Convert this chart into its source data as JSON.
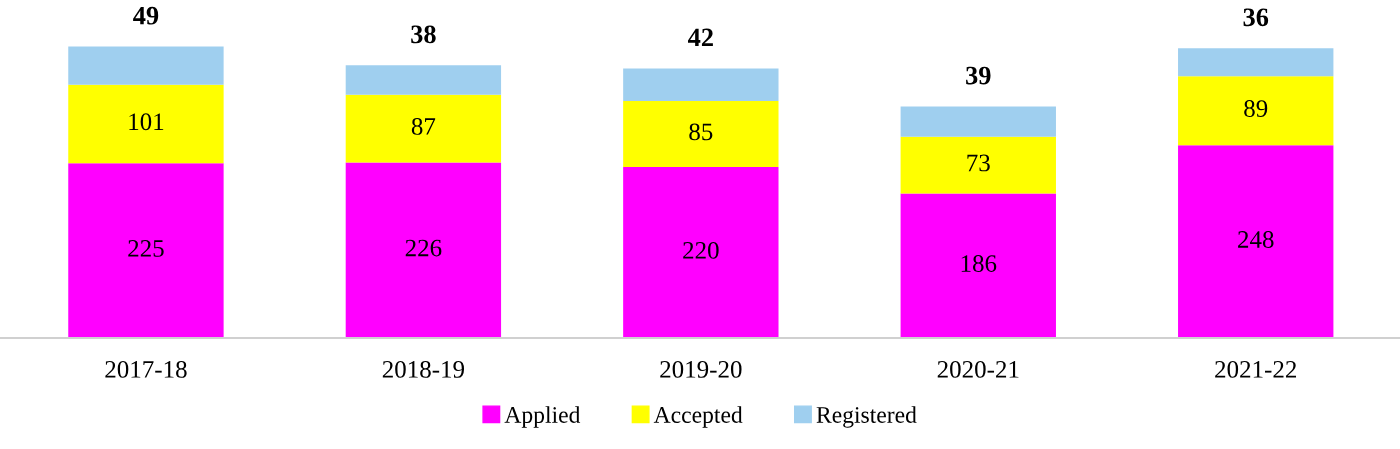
{
  "chart_data": {
    "type": "bar",
    "stacked": true,
    "data_labels": true,
    "legend": "bottom",
    "grid": false,
    "categories": [
      "2017-18",
      "2018-19",
      "2019-20",
      "2020-21",
      "2021-22"
    ],
    "series": [
      {
        "name": "Applied",
        "color": "#ff00ff",
        "values": [
          225,
          226,
          220,
          186,
          248
        ]
      },
      {
        "name": "Accepted",
        "color": "#ffff00",
        "values": [
          101,
          87,
          85,
          73,
          89
        ]
      },
      {
        "name": "Registered",
        "color": "#9fcfef",
        "values": [
          49,
          38,
          42,
          39,
          36
        ]
      }
    ]
  }
}
